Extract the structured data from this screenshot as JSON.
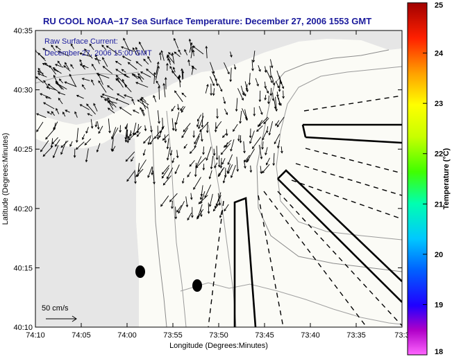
{
  "title": "RU COOL  NOAA−17  Sea Surface Temperature:  December 27, 2006 1553 GMT",
  "overlay": {
    "line1": "Raw Surface Current:",
    "line2": "December 27, 2006 15:00 GMT"
  },
  "axes": {
    "xlabel": "Longitude (Degrees:Minutes)",
    "ylabel": "Latitude (Degrees:Minutes)",
    "xticks": [
      "74:10",
      "74:05",
      "74:00",
      "73:55",
      "73:50",
      "73:45",
      "73:40",
      "73:35",
      "73:3"
    ],
    "yticks": [
      "40:35",
      "40:30",
      "40:25",
      "40:20",
      "40:15",
      "40:10"
    ]
  },
  "scale": {
    "label": "50 cm/s"
  },
  "colorbar": {
    "label": "Temperature (°C)",
    "ticks": [
      "25",
      "24",
      "23",
      "22",
      "21",
      "20",
      "19",
      "18"
    ],
    "min": 18,
    "max": 25
  }
}
